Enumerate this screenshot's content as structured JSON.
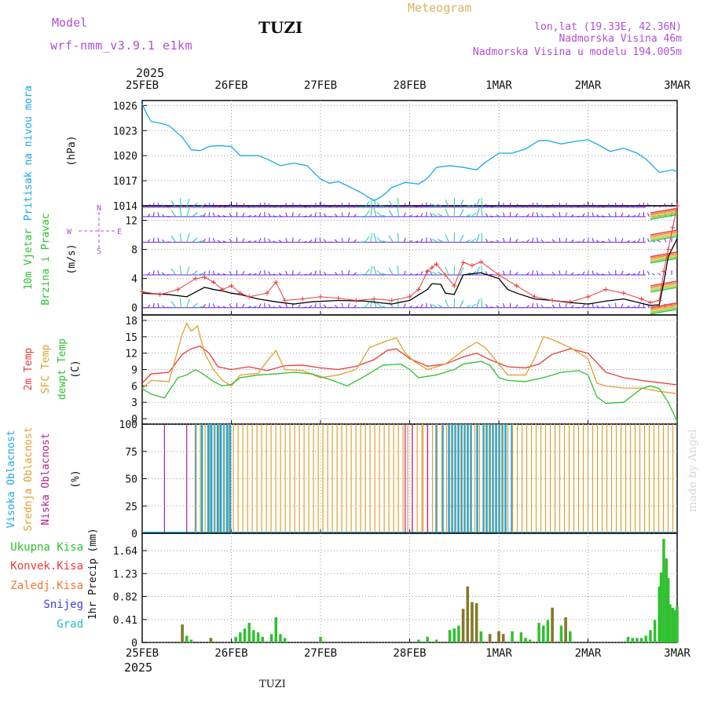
{
  "header": {
    "model_label": "Model",
    "model_name": "wrf-nmm_v3.9.1 e1km",
    "station": "TUZI",
    "meteogram": "Meteogram",
    "lonlat": "lon,lat (19.33E, 42.36N)",
    "altitude": "Nadmorska Visina 46m",
    "altitude_model": "Nadmorska Visina u modelu 194.005m",
    "year_top": "2025",
    "year_bottom": "2025",
    "footer": "TUZI",
    "watermark": "made by Angel"
  },
  "colors": {
    "pressure": "#19a8e8",
    "t2m": "#e83c3c",
    "sfc": "#e0a030",
    "dewpt": "#30c030",
    "cloud_high": "#19a8e8",
    "cloud_mid": "#e0a030",
    "cloud_low": "#b0208c",
    "precip_total": "#30c030",
    "precip_conv": "#e83c3c",
    "precip_frz": "#f07830",
    "snow": "#4040e0",
    "hail": "#20c0c0",
    "label_purple": "#b050d0",
    "label_orange": "#e0b060",
    "wind_speed_line": "#000000",
    "wind_gust": "#e83c3c",
    "wind_arrows": [
      "#7020e0",
      "#3060f0",
      "#20b0d0",
      "#20d0a0"
    ]
  },
  "chart_data": [
    {
      "type": "line",
      "panel": "pressure",
      "ylabel": "Pritisak na nivou mora",
      "unit": "(hPa)",
      "x_ticks": [
        "25FEB",
        "26FEB",
        "27FEB",
        "28FEB",
        "1MAR",
        "2MAR",
        "3MAR"
      ],
      "ylim": [
        1014,
        1026.6
      ],
      "y_ticks": [
        "1014",
        "1017",
        "1020",
        "1023",
        "1026"
      ],
      "series": [
        {
          "x": [
            0,
            0.05,
            0.1,
            0.2,
            0.3,
            0.45,
            0.55,
            0.65,
            0.75,
            0.85,
            1.0,
            1.1,
            1.3,
            1.4,
            1.55,
            1.7,
            1.85,
            2.0,
            2.1,
            2.2,
            2.3,
            2.45,
            2.6,
            2.7,
            2.8,
            2.95,
            3.1,
            3.2,
            3.3,
            3.45,
            3.6,
            3.75,
            3.85,
            4.0,
            4.15,
            4.3,
            4.45,
            4.55,
            4.7,
            4.85,
            5.0,
            5.1,
            5.25,
            5.4,
            5.55,
            5.65,
            5.8,
            5.95,
            6.0
          ],
          "y": [
            1026.2,
            1025.0,
            1024.1,
            1023.9,
            1023.6,
            1022.2,
            1020.7,
            1020.6,
            1021.1,
            1021.2,
            1021.1,
            1020.0,
            1020.0,
            1019.6,
            1018.8,
            1019.1,
            1018.8,
            1017.2,
            1016.7,
            1016.9,
            1016.4,
            1015.6,
            1014.6,
            1015.2,
            1016.2,
            1016.8,
            1016.6,
            1017.3,
            1018.6,
            1018.8,
            1018.6,
            1018.3,
            1019.2,
            1020.3,
            1020.3,
            1020.8,
            1021.8,
            1021.8,
            1021.4,
            1021.7,
            1021.9,
            1021.4,
            1020.5,
            1020.9,
            1020.3,
            1019.6,
            1018.0,
            1018.3,
            1018.1
          ]
        }
      ]
    },
    {
      "type": "line",
      "panel": "wind",
      "ylabel": [
        "10m Vjetar",
        "Brzina i Pravac"
      ],
      "unit": "(m/s)",
      "compass": [
        "N",
        "S",
        "W",
        "E"
      ],
      "ylim": [
        -1,
        14
      ],
      "y_ticks": [
        "0",
        "4",
        "8",
        "12"
      ],
      "series": [
        {
          "name": "speed",
          "x": [
            0,
            0.3,
            0.5,
            0.7,
            0.8,
            0.9,
            1.0,
            1.1,
            1.3,
            1.5,
            1.7,
            1.9,
            2.2,
            2.5,
            2.8,
            3.0,
            3.2,
            3.25,
            3.35,
            3.4,
            3.5,
            3.6,
            3.8,
            4.0,
            4.1,
            4.2,
            4.4,
            4.6,
            4.8,
            5.0,
            5.2,
            5.4,
            5.6,
            5.7,
            5.8,
            5.85,
            5.9,
            6.0
          ],
          "y": [
            2.0,
            1.8,
            1.5,
            2.8,
            2.5,
            2.3,
            2.0,
            1.8,
            1.2,
            0.8,
            0.5,
            0.8,
            1.0,
            0.9,
            0.5,
            1.0,
            2.5,
            3.3,
            3.2,
            2.0,
            1.8,
            4.5,
            4.8,
            4.0,
            2.5,
            2.0,
            1.2,
            1.0,
            0.7,
            0.5,
            0.9,
            1.2,
            0.6,
            0.3,
            0.4,
            3.5,
            7.0,
            9.5
          ]
        },
        {
          "name": "gust",
          "x": [
            0,
            0.2,
            0.4,
            0.6,
            0.7,
            0.8,
            0.9,
            1.0,
            1.1,
            1.2,
            1.4,
            1.5,
            1.6,
            1.8,
            2.0,
            2.2,
            2.4,
            2.6,
            2.8,
            3.0,
            3.1,
            3.2,
            3.25,
            3.3,
            3.4,
            3.5,
            3.6,
            3.7,
            3.8,
            4.0,
            4.2,
            4.4,
            4.6,
            4.8,
            5.0,
            5.2,
            5.4,
            5.6,
            5.7,
            5.8,
            5.85,
            5.9,
            5.95,
            6.0
          ],
          "y": [
            2.2,
            1.8,
            2.5,
            4.0,
            4.2,
            3.5,
            2.5,
            3.0,
            2.0,
            1.5,
            2.0,
            3.5,
            1.0,
            1.2,
            1.5,
            1.3,
            1.0,
            1.2,
            1.0,
            1.5,
            2.5,
            5.0,
            5.5,
            6.0,
            4.5,
            3.0,
            6.2,
            5.8,
            6.3,
            4.5,
            3.0,
            1.5,
            1.0,
            0.8,
            1.5,
            2.5,
            2.0,
            1.2,
            0.7,
            1.0,
            5.0,
            8.0,
            11.0,
            14.0
          ]
        }
      ]
    },
    {
      "type": "line",
      "panel": "temperature",
      "ylabel": [
        "2m Temp",
        "SFC Temp",
        "dewpt Temp"
      ],
      "unit": "(C)",
      "ylim": [
        -1,
        19
      ],
      "y_ticks": [
        "0",
        "3",
        "6",
        "9",
        "12",
        "15",
        "18"
      ],
      "series": [
        {
          "name": "2m Temp",
          "x": [
            0,
            0.1,
            0.3,
            0.45,
            0.55,
            0.65,
            0.75,
            0.85,
            1.0,
            1.2,
            1.4,
            1.6,
            1.8,
            2.0,
            2.2,
            2.4,
            2.6,
            2.75,
            2.85,
            3.0,
            3.2,
            3.4,
            3.6,
            3.75,
            3.9,
            4.1,
            4.3,
            4.45,
            4.6,
            4.8,
            5.0,
            5.2,
            5.4,
            5.6,
            5.8,
            6.0
          ],
          "y": [
            6.5,
            8.2,
            8.5,
            11.8,
            12.8,
            13.3,
            12.0,
            9.5,
            9.0,
            9.5,
            8.8,
            9.7,
            9.8,
            9.3,
            9.0,
            9.6,
            10.8,
            12.5,
            12.8,
            11.0,
            9.6,
            10.0,
            11.3,
            12.0,
            10.8,
            9.5,
            9.3,
            10.0,
            11.8,
            12.8,
            12.0,
            8.5,
            7.5,
            7.0,
            6.6,
            6.2
          ]
        },
        {
          "name": "SFC Temp",
          "x": [
            0,
            0.1,
            0.3,
            0.45,
            0.5,
            0.55,
            0.62,
            0.7,
            0.8,
            0.9,
            1.0,
            1.1,
            1.3,
            1.4,
            1.5,
            1.6,
            1.8,
            2.0,
            2.2,
            2.4,
            2.55,
            2.7,
            2.85,
            2.95,
            3.05,
            3.2,
            3.4,
            3.6,
            3.75,
            3.85,
            3.95,
            4.1,
            4.3,
            4.4,
            4.5,
            4.6,
            4.8,
            5.0,
            5.1,
            5.2,
            5.4,
            5.6,
            5.8,
            6.0
          ],
          "y": [
            5.5,
            7.0,
            6.8,
            15.5,
            17.5,
            16.0,
            17.0,
            12.0,
            9.0,
            7.0,
            6.0,
            8.0,
            8.3,
            10.5,
            12.5,
            9.0,
            8.8,
            7.5,
            8.0,
            9.0,
            13.0,
            14.0,
            14.8,
            12.0,
            10.5,
            9.0,
            10.0,
            12.5,
            14.0,
            13.0,
            11.0,
            8.0,
            8.0,
            11.0,
            15.0,
            14.5,
            13.0,
            11.0,
            6.5,
            6.0,
            5.6,
            5.6,
            5.0,
            4.6
          ]
        },
        {
          "name": "dewpt Temp",
          "x": [
            0,
            0.1,
            0.25,
            0.4,
            0.5,
            0.6,
            0.7,
            0.8,
            0.9,
            1.0,
            1.1,
            1.3,
            1.5,
            1.7,
            1.9,
            2.1,
            2.3,
            2.5,
            2.7,
            2.9,
            3.0,
            3.1,
            3.3,
            3.5,
            3.6,
            3.8,
            3.9,
            4.0,
            4.1,
            4.3,
            4.5,
            4.7,
            4.9,
            5.0,
            5.1,
            5.2,
            5.4,
            5.6,
            5.7,
            5.8,
            5.9,
            6.0
          ],
          "y": [
            5.5,
            4.5,
            3.8,
            7.5,
            8.0,
            9.0,
            8.0,
            6.8,
            6.0,
            6.3,
            7.5,
            8.0,
            8.2,
            8.5,
            8.2,
            7.2,
            6.0,
            7.8,
            9.8,
            10.0,
            9.0,
            7.5,
            8.0,
            9.0,
            10.0,
            10.5,
            9.8,
            7.5,
            7.0,
            6.8,
            7.5,
            8.5,
            8.8,
            8.0,
            4.0,
            2.8,
            3.0,
            5.5,
            6.0,
            5.5,
            3.0,
            -0.5
          ]
        }
      ]
    },
    {
      "type": "bar",
      "panel": "clouds",
      "ylabel": [
        "Visoka Oblacnost",
        "Srednja Oblacnost",
        "Niska Oblacnost"
      ],
      "unit": "(%)",
      "ylim": [
        0,
        100
      ],
      "y_ticks": [
        "0",
        "25",
        "50",
        "75",
        "100"
      ],
      "segments": [
        {
          "name": "Visoka Oblacnost",
          "ranges": [
            [
              0.6,
              1.0
            ],
            [
              3.3,
              4.15
            ]
          ],
          "value": 100
        },
        {
          "name": "Srednja Oblacnost",
          "ranges": [
            [
              0.6,
              3.15
            ],
            [
              3.15,
              6.0
            ]
          ],
          "value": 100
        },
        {
          "name": "Niska Oblacnost",
          "ranges": [
            [
              0.25,
              0.25
            ],
            [
              0.5,
              0.5
            ],
            [
              2.95,
              3.05
            ],
            [
              3.2,
              3.2
            ]
          ],
          "value": 100
        }
      ]
    },
    {
      "type": "bar",
      "panel": "precip",
      "ylabel": "1hr Precip",
      "unit": "(mm)",
      "legend": [
        "Ukupna Kisa",
        "Konvek.Kisa",
        "Zaledj.Kisa",
        "Snijeg",
        "Grad"
      ],
      "ylim": [
        0,
        1.95
      ],
      "y_ticks": [
        "0",
        "0.41",
        "0.82",
        "1.23",
        "1.64"
      ],
      "x_ticks": [
        "25FEB",
        "26FEB",
        "27FEB",
        "28FEB",
        "1MAR",
        "2MAR",
        "3MAR"
      ],
      "total": [
        [
          0.45,
          0.32
        ],
        [
          0.5,
          0.12
        ],
        [
          0.55,
          0.05
        ],
        [
          0.77,
          0.08
        ],
        [
          1.05,
          0.1
        ],
        [
          1.1,
          0.18
        ],
        [
          1.15,
          0.25
        ],
        [
          1.2,
          0.35
        ],
        [
          1.25,
          0.22
        ],
        [
          1.3,
          0.18
        ],
        [
          1.35,
          0.1
        ],
        [
          1.45,
          0.15
        ],
        [
          1.5,
          0.45
        ],
        [
          1.55,
          0.15
        ],
        [
          1.6,
          0.08
        ],
        [
          2.0,
          0.1
        ],
        [
          3.1,
          0.05
        ],
        [
          3.2,
          0.1
        ],
        [
          3.3,
          0.05
        ],
        [
          3.45,
          0.22
        ],
        [
          3.5,
          0.25
        ],
        [
          3.55,
          0.3
        ],
        [
          3.6,
          0.6
        ],
        [
          3.65,
          1.0
        ],
        [
          3.7,
          0.72
        ],
        [
          3.75,
          0.7
        ],
        [
          3.8,
          0.2
        ],
        [
          3.9,
          0.15
        ],
        [
          4.0,
          0.2
        ],
        [
          4.05,
          0.15
        ],
        [
          4.15,
          0.2
        ],
        [
          4.25,
          0.18
        ],
        [
          4.3,
          0.08
        ],
        [
          4.35,
          0.05
        ],
        [
          4.45,
          0.35
        ],
        [
          4.5,
          0.3
        ],
        [
          4.55,
          0.4
        ],
        [
          4.6,
          0.62
        ],
        [
          4.7,
          0.3
        ],
        [
          4.75,
          0.45
        ],
        [
          4.8,
          0.2
        ],
        [
          5.45,
          0.1
        ],
        [
          5.5,
          0.08
        ],
        [
          5.55,
          0.08
        ],
        [
          5.6,
          0.08
        ],
        [
          5.65,
          0.12
        ],
        [
          5.7,
          0.22
        ],
        [
          5.75,
          0.4
        ],
        [
          5.8,
          1.0
        ],
        [
          5.82,
          1.25
        ],
        [
          5.85,
          1.85
        ],
        [
          5.88,
          1.5
        ],
        [
          5.9,
          1.15
        ],
        [
          5.92,
          0.68
        ],
        [
          5.95,
          0.62
        ],
        [
          5.97,
          0.58
        ],
        [
          6.0,
          0.65
        ]
      ],
      "conv": [
        [
          0.45,
          0.32
        ],
        [
          0.77,
          0.08
        ],
        [
          3.6,
          0.6
        ],
        [
          3.65,
          1.0
        ],
        [
          3.7,
          0.72
        ],
        [
          3.75,
          0.7
        ],
        [
          3.9,
          0.15
        ],
        [
          4.0,
          0.2
        ],
        [
          4.05,
          0.15
        ],
        [
          4.6,
          0.62
        ],
        [
          4.75,
          0.45
        ]
      ]
    }
  ]
}
